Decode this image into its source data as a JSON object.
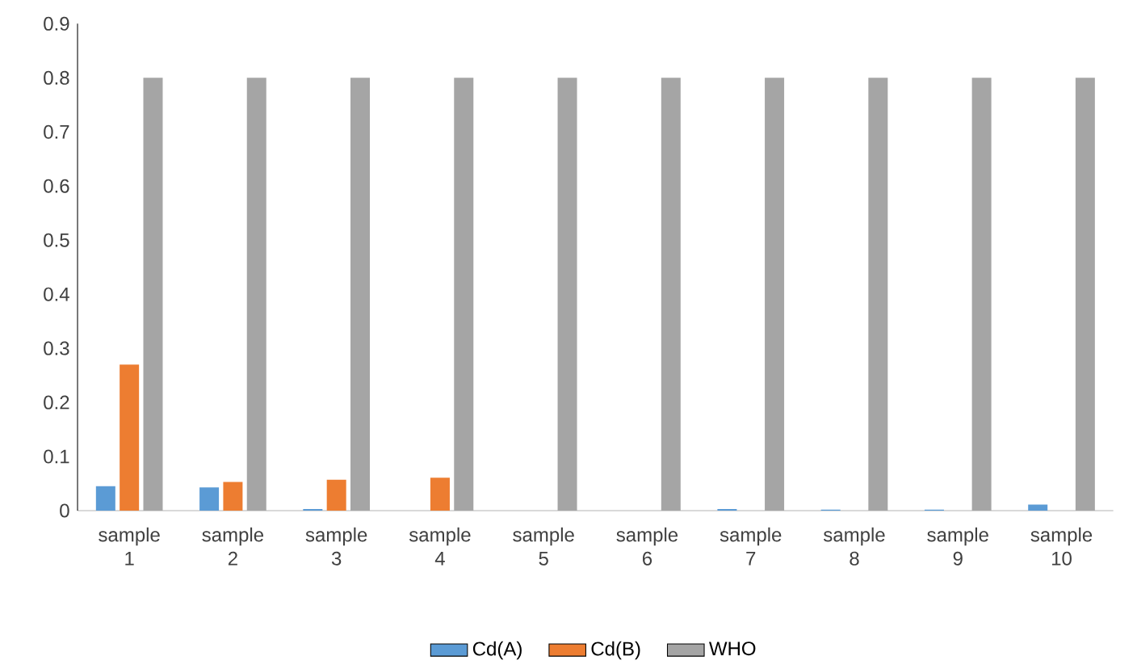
{
  "chart_data": {
    "type": "bar",
    "categories": [
      "sample 1",
      "sample 2",
      "sample 3",
      "sample 4",
      "sample 5",
      "sample 6",
      "sample 7",
      "sample 8",
      "sample 9",
      "sample 10"
    ],
    "series": [
      {
        "name": "Cd(A)",
        "color": "#5b9bd5",
        "values": [
          0.045,
          0.043,
          0.003,
          0,
          0,
          0,
          0.003,
          0.002,
          0.002,
          0.011
        ]
      },
      {
        "name": "Cd(B)",
        "color": "#ed7d31",
        "values": [
          0.27,
          0.053,
          0.057,
          0.061,
          0,
          0,
          0,
          0,
          0,
          0
        ]
      },
      {
        "name": "WHO",
        "color": "#a5a5a5",
        "values": [
          0.8,
          0.8,
          0.8,
          0.8,
          0.8,
          0.8,
          0.8,
          0.8,
          0.8,
          0.8
        ]
      }
    ],
    "ylim": [
      0,
      0.9
    ],
    "yticks": [
      0,
      0.1,
      0.2,
      0.3,
      0.4,
      0.5,
      0.6,
      0.7,
      0.8,
      0.9
    ],
    "grid": false,
    "legend": "bottom"
  }
}
